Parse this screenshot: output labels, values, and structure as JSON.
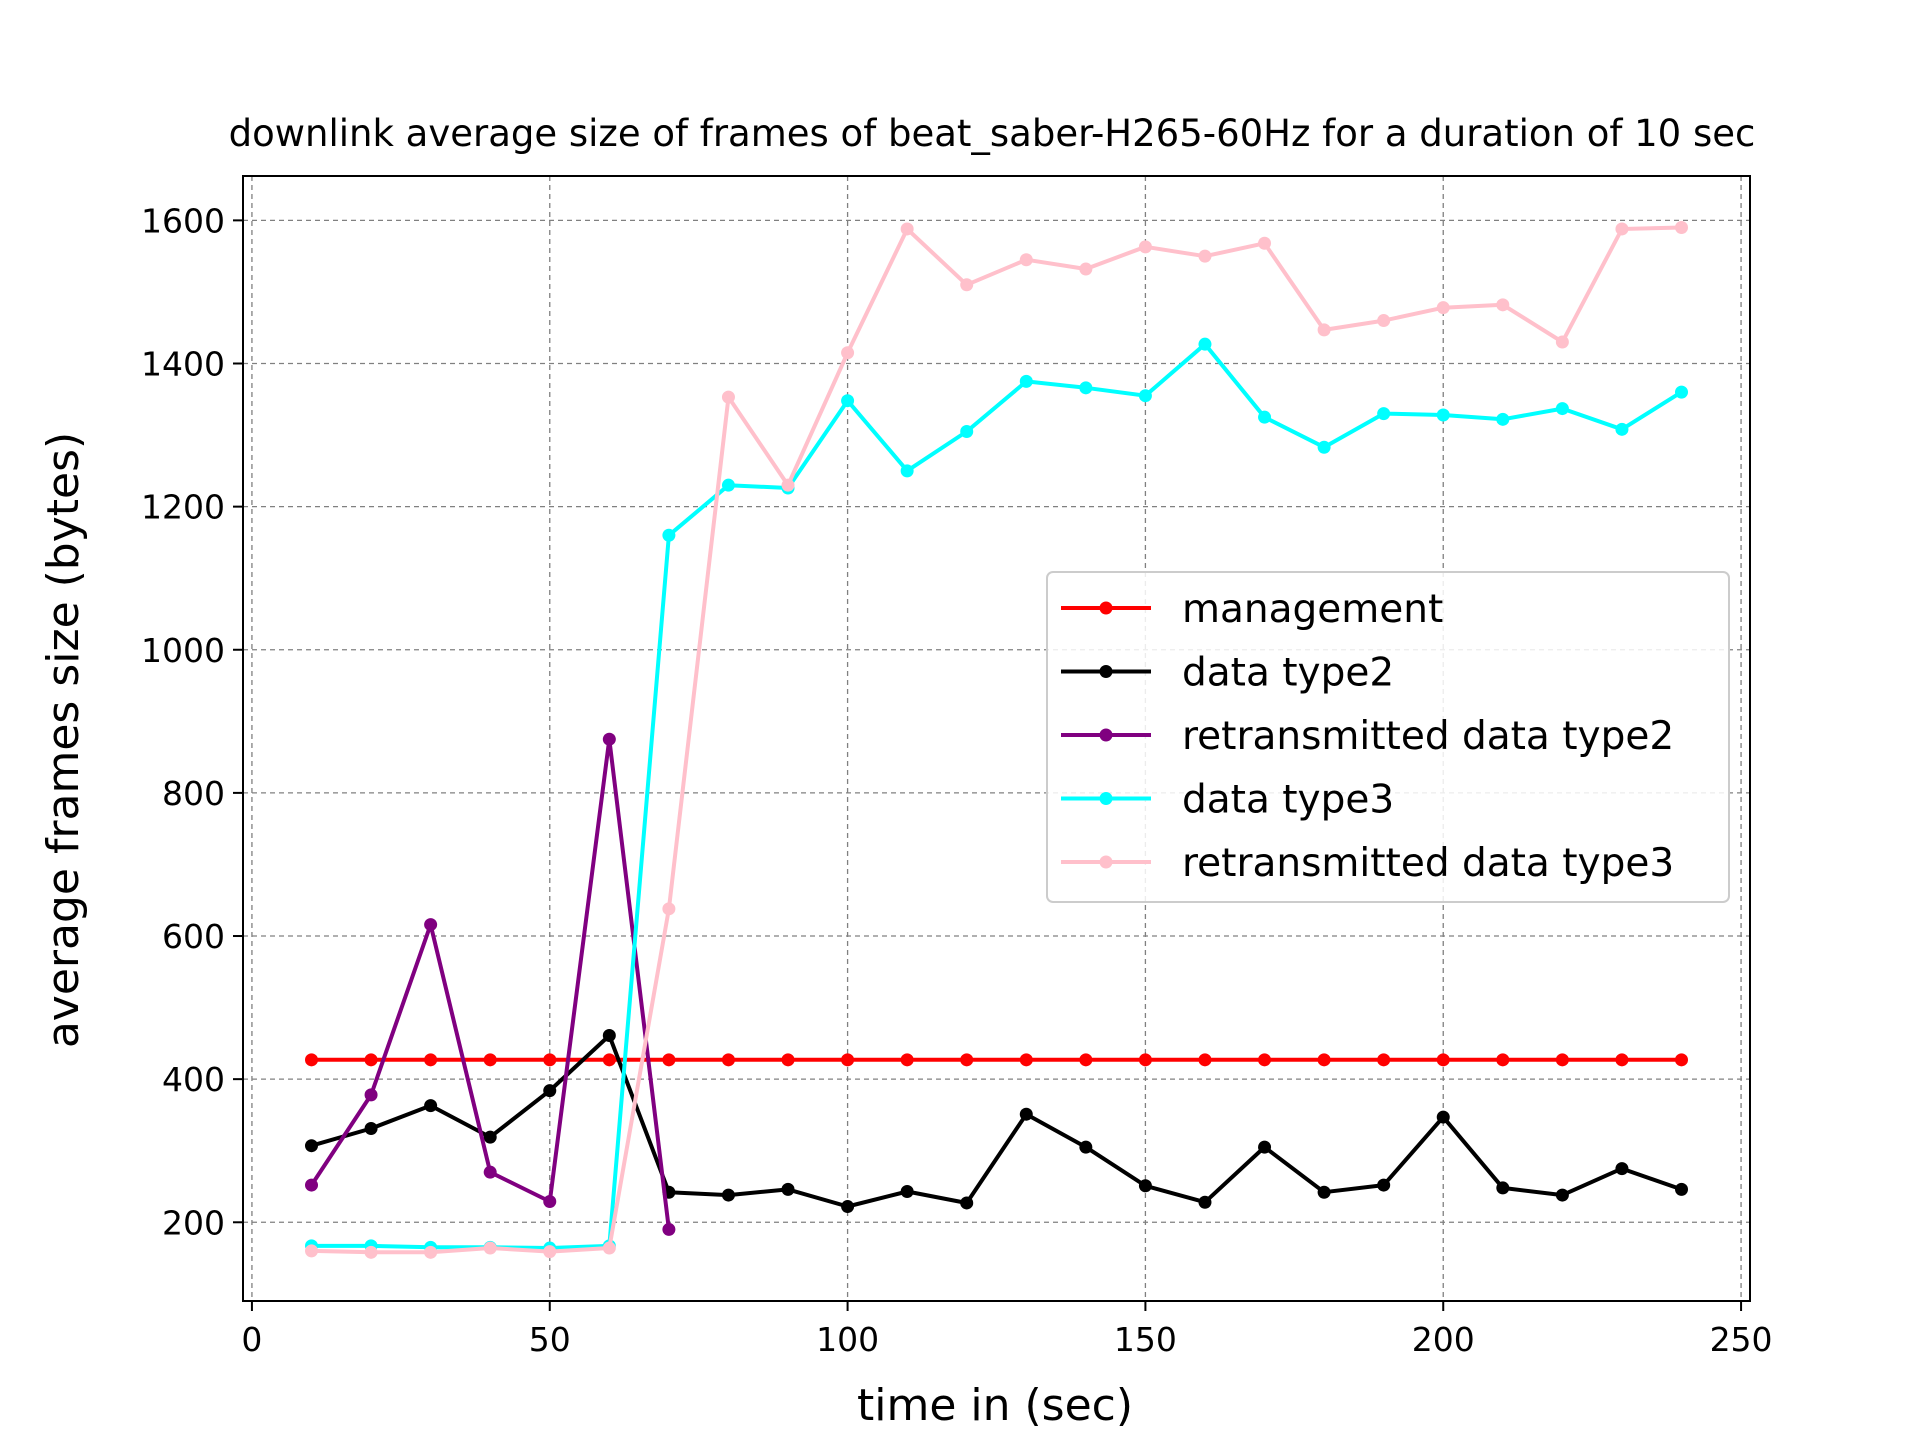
{
  "chart_data": {
    "type": "line",
    "title": "downlink average size of frames of beat_saber-H265-60Hz for a duration of 10 sec",
    "xlabel": "time in (sec)",
    "ylabel": "average frames size (bytes)",
    "xlim": [
      -1.5,
      251.5
    ],
    "ylim": [
      90,
      1662
    ],
    "xticks": [
      0,
      50,
      100,
      150,
      200,
      250
    ],
    "yticks": [
      200,
      400,
      600,
      800,
      1000,
      1200,
      1400,
      1600
    ],
    "grid": true,
    "legend_position": "center-right",
    "series": [
      {
        "name": "management",
        "color": "#ff0000",
        "x": [
          10,
          20,
          30,
          40,
          50,
          60,
          70,
          80,
          90,
          100,
          110,
          120,
          130,
          140,
          150,
          160,
          170,
          180,
          190,
          200,
          210,
          220,
          230,
          240
        ],
        "y": [
          427,
          427,
          427,
          427,
          427,
          427,
          427,
          427,
          427,
          427,
          427,
          427,
          427,
          427,
          427,
          427,
          427,
          427,
          427,
          427,
          427,
          427,
          427,
          427
        ]
      },
      {
        "name": "data type2",
        "color": "#000000",
        "x": [
          10,
          20,
          30,
          40,
          50,
          60,
          70,
          80,
          90,
          100,
          110,
          120,
          130,
          140,
          150,
          160,
          170,
          180,
          190,
          200,
          210,
          220,
          230,
          240
        ],
        "y": [
          307,
          331,
          363,
          319,
          384,
          461,
          242,
          238,
          246,
          222,
          243,
          227,
          351,
          305,
          251,
          228,
          305,
          242,
          252,
          347,
          248,
          238,
          275,
          246
        ]
      },
      {
        "name": "retransmitted data type2",
        "color": "#800080",
        "x": [
          10,
          20,
          30,
          40,
          50,
          60,
          70
        ],
        "y": [
          252,
          378,
          616,
          270,
          229,
          875,
          190
        ]
      },
      {
        "name": "data type3",
        "color": "#00ffff",
        "x": [
          10,
          20,
          30,
          40,
          50,
          60,
          70,
          80,
          90,
          100,
          110,
          120,
          130,
          140,
          150,
          160,
          170,
          180,
          190,
          200,
          210,
          220,
          230,
          240
        ],
        "y": [
          167,
          167,
          165,
          165,
          164,
          167,
          1160,
          1230,
          1226,
          1348,
          1250,
          1305,
          1375,
          1366,
          1355,
          1427,
          1325,
          1283,
          1330,
          1328,
          1322,
          1337,
          1308,
          1360
        ]
      },
      {
        "name": "retransmitted data type3",
        "color": "#ffc0cb",
        "x": [
          10,
          20,
          30,
          40,
          50,
          60,
          70,
          80,
          90,
          100,
          110,
          120,
          130,
          140,
          150,
          160,
          170,
          180,
          190,
          200,
          210,
          220,
          230,
          240
        ],
        "y": [
          160,
          158,
          158,
          164,
          159,
          164,
          638,
          1353,
          1230,
          1415,
          1588,
          1510,
          1545,
          1532,
          1563,
          1550,
          1568,
          1447,
          1460,
          1478,
          1482,
          1430,
          1588,
          1590
        ]
      }
    ]
  }
}
